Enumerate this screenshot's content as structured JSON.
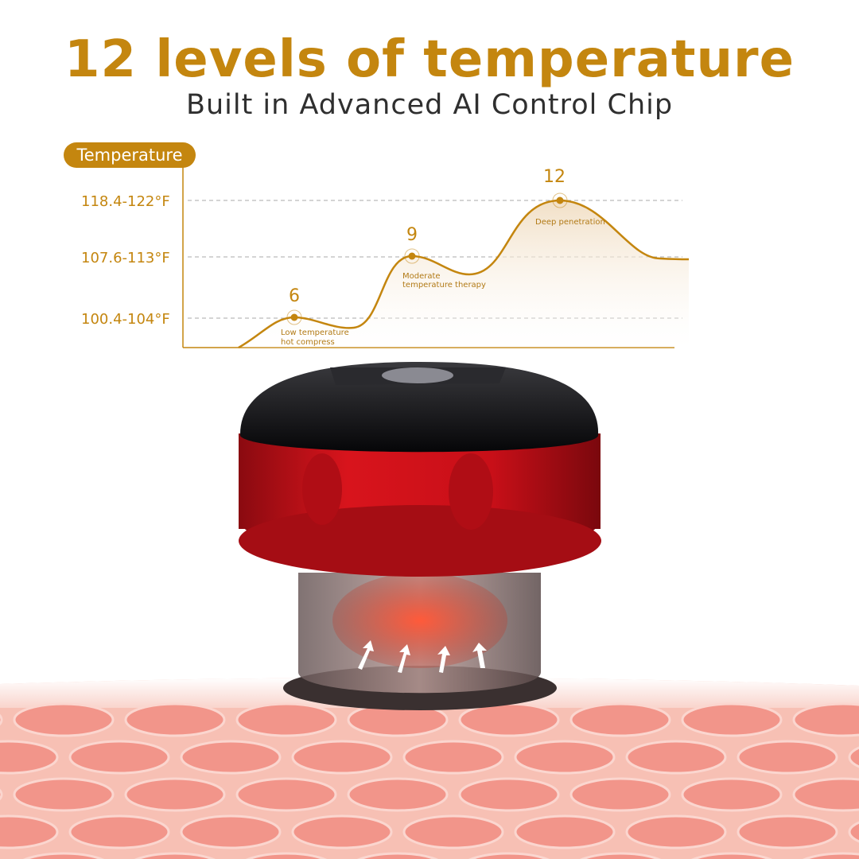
{
  "title": "12 levels of temperature",
  "subtitle": "Built in Advanced AI Control Chip",
  "chart": {
    "badge": "Temperature",
    "y_labels": [
      "118.4-122°F",
      "107.6-113°F",
      "100.4-104°F"
    ],
    "levels": [
      {
        "level": "6",
        "range": "100.4-104°F",
        "note_lines": [
          "Low temperature",
          "hot compress"
        ]
      },
      {
        "level": "9",
        "range": "107.6-113°F",
        "note_lines": [
          "Moderate",
          "temperature therapy"
        ]
      },
      {
        "level": "12",
        "range": "118.4-122°F",
        "note_lines": [
          "Deep penetration"
        ]
      }
    ],
    "colors": {
      "accent": "#c4860f",
      "device_red": "#c8101a",
      "skin": "#f4a59a"
    }
  }
}
